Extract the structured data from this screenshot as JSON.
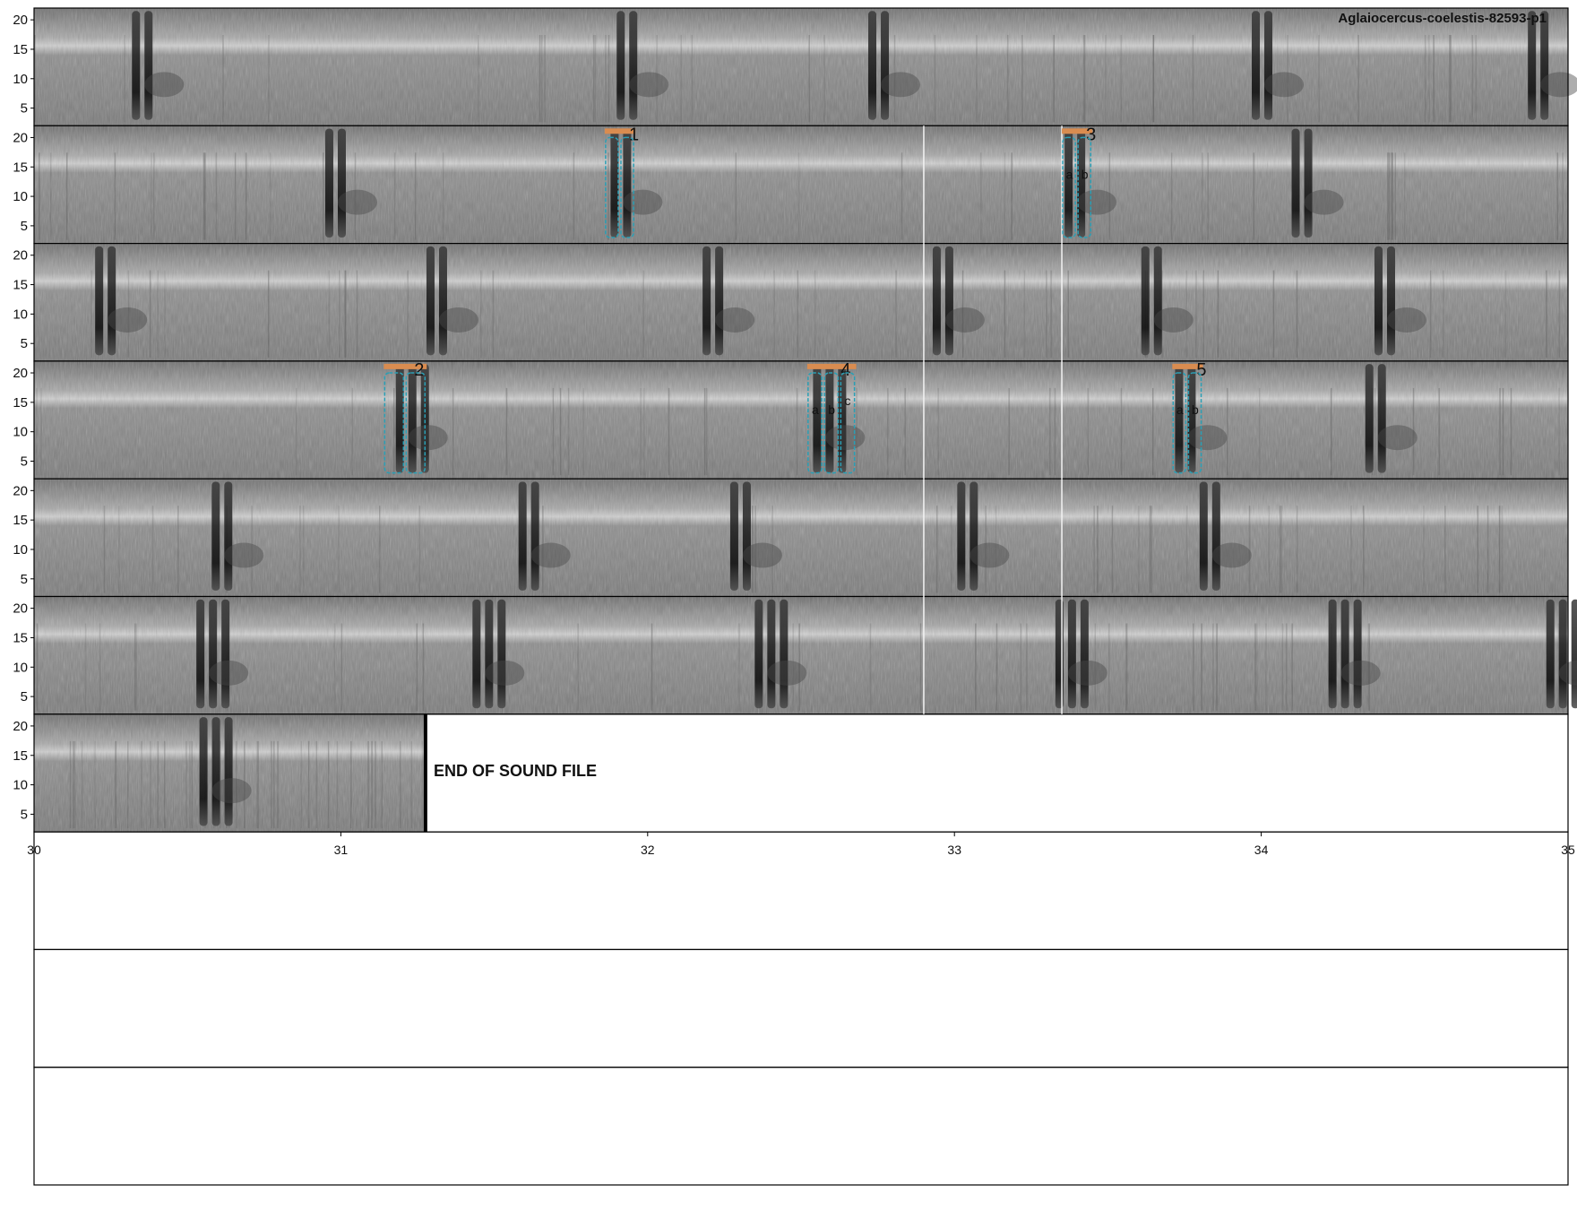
{
  "title": "Aglaiocercus-coelestis-82593-p1",
  "end_label": "END OF SOUND FILE",
  "colors": {
    "background": "#ffffff",
    "spectrogram_base": "#8c8c8c",
    "annotation_bar": "#d98c50",
    "annotation_box": "#2a9fb5",
    "frame": "#000000"
  },
  "chart_data": {
    "type": "heatmap",
    "kind": "spectrogram",
    "ylabel_ticks": [
      "5",
      "10",
      "15",
      "20"
    ],
    "ylim": [
      2,
      22
    ],
    "xlim": [
      30,
      35
    ],
    "x_tick_labels": [
      "30",
      "31",
      "32",
      "33",
      "34",
      "35"
    ],
    "rows": 10,
    "spectrogram_rows": 7,
    "end_of_file_time": 31.27,
    "annotations": [
      {
        "id": "1",
        "row": 2,
        "t_start": 31.86,
        "t_end": 31.96,
        "parts": []
      },
      {
        "id": "3",
        "row": 2,
        "t_start": 33.35,
        "t_end": 33.45,
        "parts": [
          "a",
          "b"
        ]
      },
      {
        "id": "2",
        "row": 4,
        "t_start": 31.14,
        "t_end": 31.28,
        "parts": []
      },
      {
        "id": "4",
        "row": 4,
        "t_start": 32.52,
        "t_end": 32.68,
        "parts": [
          "a",
          "b",
          "c"
        ]
      },
      {
        "id": "5",
        "row": 4,
        "t_start": 33.71,
        "t_end": 33.81,
        "parts": [
          "a",
          "b"
        ]
      }
    ],
    "selection_lines_t": [
      32.9,
      33.35
    ],
    "selection_rows": [
      2,
      3,
      4,
      5,
      6
    ]
  }
}
